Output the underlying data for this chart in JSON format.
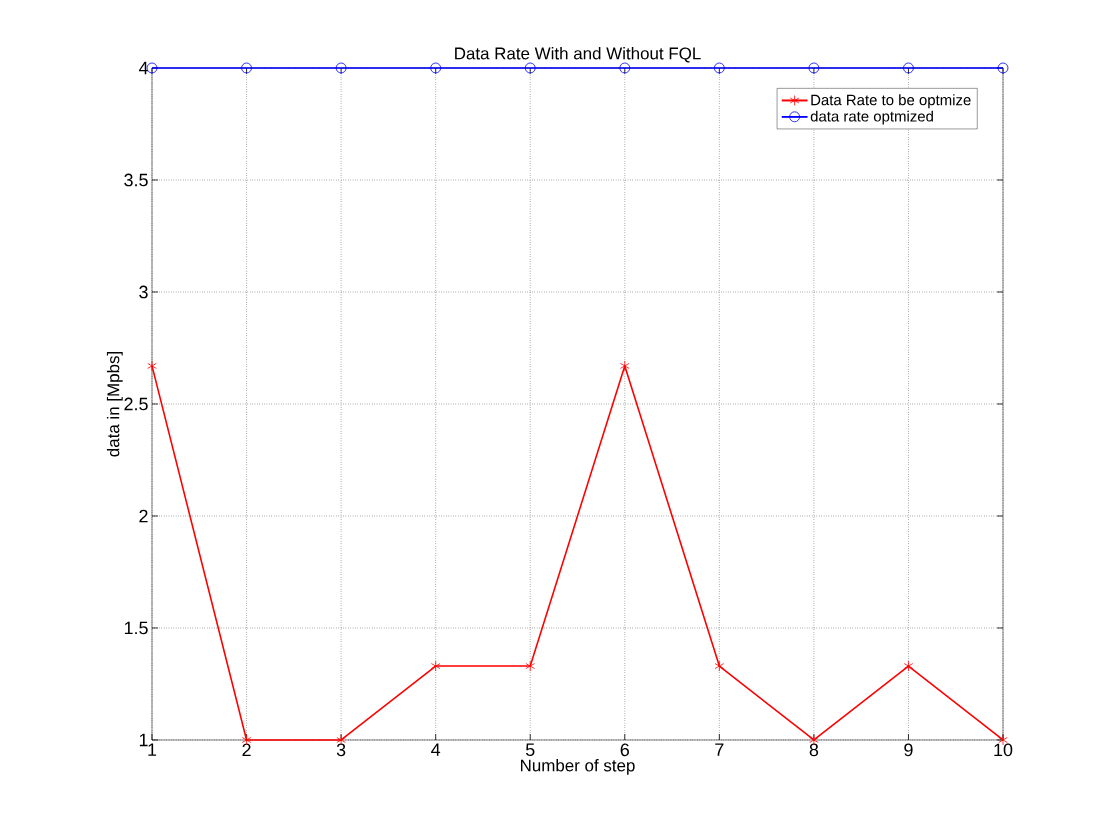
{
  "chart_data": {
    "type": "line",
    "title": "Data Rate  With and Without FQL",
    "xlabel": "Number of step",
    "ylabel": "data in [Mpbs]",
    "x": [
      1,
      2,
      3,
      4,
      5,
      6,
      7,
      8,
      9,
      10
    ],
    "series": [
      {
        "name": "Data Rate to be optmize",
        "color": "#ff0000",
        "marker": "cross",
        "values": [
          2.67,
          1,
          1,
          1.33,
          1.33,
          2.67,
          1.33,
          1,
          1.33,
          1
        ]
      },
      {
        "name": "data rate optmized",
        "color": "#0000ff",
        "marker": "circle",
        "values": [
          4,
          4,
          4,
          4,
          4,
          4,
          4,
          4,
          4,
          4
        ]
      }
    ],
    "xlim": [
      1,
      10
    ],
    "ylim": [
      1,
      4
    ],
    "xticks": [
      1,
      2,
      3,
      4,
      5,
      6,
      7,
      8,
      9,
      10
    ],
    "yticks": [
      1,
      1.5,
      2,
      2.5,
      3,
      3.5,
      4
    ],
    "grid": true,
    "legend": "top right",
    "line_style": "solid"
  }
}
